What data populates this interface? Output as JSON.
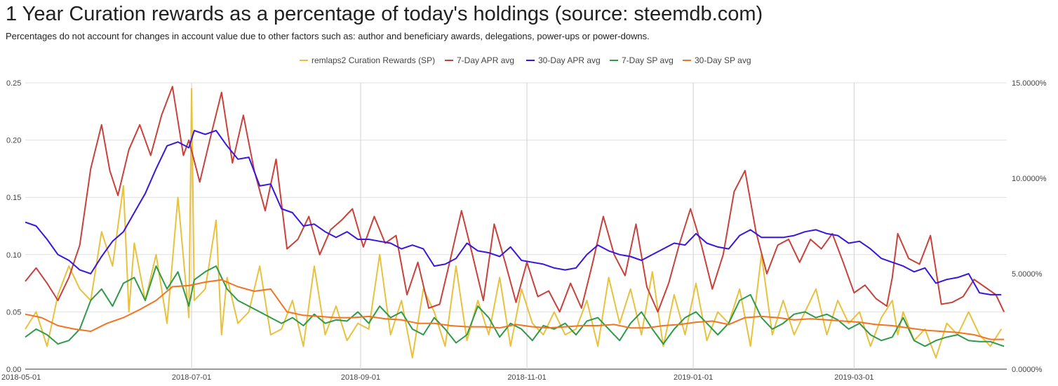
{
  "title": "1 Year Curation rewards as a percentage of today's holdings (source: steemdb.com)",
  "subtitle": "Percentages do not account for changes in account value due to other factors such as: author and beneficiary awards, delegations, power-ups or power-downs.",
  "chart_data": {
    "type": "line",
    "title": "1 Year Curation rewards as a percentage of today's holdings (source: steemdb.com)",
    "xlabel": "",
    "ylabel": "",
    "x_start": "2018-05-01",
    "x_end": "2019-04-26",
    "x_ticks": [
      "2018-05-01",
      "2018-07-01",
      "2018-09-01",
      "2018-11-01",
      "2019-01-01",
      "2019-03-01"
    ],
    "x_tick_days": [
      0,
      61,
      123,
      184,
      245,
      304
    ],
    "x_range_days": [
      0,
      360
    ],
    "ylim_left": [
      0,
      0.25
    ],
    "y_ticks_left": [
      "0.00",
      "0.05",
      "0.10",
      "0.15",
      "0.20",
      "0.25"
    ],
    "y_tick_values_left": [
      0,
      0.05,
      0.1,
      0.15,
      0.2,
      0.25
    ],
    "ylim_right": [
      0,
      15
    ],
    "y_ticks_right": [
      "0.0000%",
      "5.0000%",
      "10.0000%",
      "15.0000%"
    ],
    "y_tick_values_right": [
      0,
      5,
      10,
      15
    ],
    "grid": true,
    "legend_position": "top",
    "series": [
      {
        "name": "remlaps2 Curation Rewards (SP)",
        "axis": "left",
        "color": "#e8c13d",
        "days": [
          0,
          4,
          8,
          12,
          16,
          20,
          24,
          28,
          32,
          36,
          38,
          40,
          44,
          48,
          52,
          56,
          60,
          61,
          62,
          66,
          70,
          72,
          74,
          78,
          82,
          86,
          90,
          94,
          98,
          102,
          106,
          110,
          114,
          118,
          122,
          126,
          130,
          134,
          138,
          142,
          146,
          150,
          154,
          158,
          162,
          166,
          170,
          174,
          178,
          182,
          186,
          190,
          194,
          198,
          202,
          206,
          210,
          214,
          218,
          222,
          226,
          230,
          234,
          238,
          242,
          246,
          250,
          254,
          258,
          262,
          266,
          270,
          274,
          278,
          282,
          286,
          290,
          294,
          298,
          302,
          306,
          310,
          314,
          318,
          320,
          322,
          326,
          330,
          334,
          338,
          342,
          346,
          350,
          354,
          358
        ],
        "values": [
          0.035,
          0.05,
          0.02,
          0.065,
          0.09,
          0.07,
          0.06,
          0.12,
          0.09,
          0.16,
          0.05,
          0.11,
          0.06,
          0.1,
          0.04,
          0.15,
          0.045,
          0.245,
          0.06,
          0.07,
          0.13,
          0.03,
          0.08,
          0.04,
          0.05,
          0.09,
          0.03,
          0.035,
          0.06,
          0.02,
          0.09,
          0.03,
          0.055,
          0.025,
          0.04,
          0.035,
          0.1,
          0.03,
          0.06,
          0.01,
          0.07,
          0.05,
          0.02,
          0.09,
          0.025,
          0.06,
          0.03,
          0.08,
          0.02,
          0.07,
          0.04,
          0.03,
          0.05,
          0.03,
          0.035,
          0.06,
          0.02,
          0.08,
          0.04,
          0.07,
          0.03,
          0.085,
          0.02,
          0.065,
          0.03,
          0.075,
          0.025,
          0.05,
          0.04,
          0.07,
          0.02,
          0.1,
          0.03,
          0.06,
          0.03,
          0.05,
          0.07,
          0.03,
          0.06,
          0.04,
          0.05,
          0.02,
          0.045,
          0.06,
          0.03,
          0.05,
          0.025,
          0.035,
          0.01,
          0.04,
          0.03,
          0.05,
          0.03,
          0.02,
          0.035
        ]
      },
      {
        "name": "7-Day APR avg",
        "axis": "right",
        "color": "#c8413b",
        "days": [
          0,
          4,
          8,
          12,
          16,
          20,
          24,
          28,
          31,
          34,
          38,
          42,
          46,
          50,
          54,
          58,
          60,
          64,
          68,
          72,
          76,
          80,
          84,
          88,
          92,
          96,
          100,
          104,
          108,
          112,
          116,
          120,
          124,
          128,
          132,
          136,
          140,
          144,
          148,
          152,
          156,
          160,
          164,
          168,
          172,
          176,
          180,
          184,
          188,
          192,
          196,
          200,
          204,
          208,
          212,
          216,
          220,
          224,
          228,
          232,
          236,
          240,
          244,
          248,
          252,
          256,
          260,
          264,
          268,
          272,
          276,
          280,
          284,
          288,
          292,
          296,
          300,
          304,
          308,
          312,
          316,
          318,
          320,
          324,
          328,
          332,
          336,
          340,
          344,
          348,
          352,
          356,
          359
        ],
        "values": [
          4.6,
          5.3,
          4.5,
          3.6,
          4.8,
          6.5,
          10.5,
          12.8,
          10.4,
          9.1,
          11.5,
          12.8,
          11.2,
          13.3,
          14.8,
          11.2,
          12.0,
          9.8,
          12.2,
          14.5,
          10.8,
          13.3,
          10.4,
          8.3,
          11.0,
          6.3,
          6.8,
          8.0,
          6.0,
          7.3,
          7.8,
          8.4,
          6.4,
          8.0,
          6.6,
          7.0,
          3.9,
          5.6,
          3.2,
          3.4,
          5.8,
          8.3,
          6.0,
          3.6,
          7.6,
          5.6,
          3.5,
          5.6,
          3.8,
          4.1,
          3.0,
          4.5,
          3.2,
          5.5,
          8.0,
          6.0,
          4.9,
          7.6,
          4.3,
          3.0,
          4.5,
          6.6,
          8.4,
          6.5,
          4.2,
          6.0,
          9.3,
          10.4,
          7.2,
          5.0,
          6.5,
          6.8,
          5.6,
          6.8,
          6.3,
          7.1,
          5.6,
          4.0,
          4.4,
          3.7,
          3.3,
          4.8,
          7.1,
          5.8,
          5.5,
          7.0,
          3.4,
          3.5,
          3.8,
          4.7,
          4.3,
          3.9,
          3.0
        ]
      },
      {
        "name": "30-Day APR avg",
        "axis": "right",
        "color": "#3a15e0",
        "days": [
          0,
          4,
          8,
          12,
          16,
          20,
          24,
          28,
          32,
          36,
          40,
          44,
          48,
          52,
          56,
          60,
          62,
          66,
          70,
          74,
          78,
          82,
          86,
          90,
          94,
          98,
          102,
          106,
          110,
          114,
          118,
          122,
          126,
          130,
          134,
          138,
          142,
          146,
          150,
          154,
          158,
          162,
          166,
          170,
          174,
          178,
          182,
          186,
          190,
          194,
          198,
          202,
          206,
          210,
          214,
          218,
          222,
          226,
          230,
          234,
          238,
          242,
          246,
          250,
          254,
          258,
          262,
          266,
          270,
          274,
          278,
          282,
          286,
          290,
          294,
          298,
          302,
          306,
          310,
          314,
          318,
          322,
          326,
          330,
          334,
          338,
          342,
          346,
          350,
          354,
          358
        ],
        "values": [
          7.7,
          7.5,
          6.8,
          6.0,
          5.7,
          5.2,
          5.0,
          5.9,
          6.7,
          7.2,
          8.2,
          9.2,
          10.5,
          11.7,
          11.9,
          11.6,
          12.5,
          12.3,
          12.5,
          11.7,
          11.0,
          11.1,
          9.6,
          9.7,
          8.4,
          8.2,
          7.5,
          7.6,
          7.2,
          6.9,
          7.2,
          6.8,
          6.8,
          6.7,
          6.6,
          6.3,
          6.5,
          6.3,
          5.4,
          5.5,
          5.8,
          6.6,
          6.2,
          6.1,
          5.9,
          6.4,
          5.7,
          5.6,
          5.5,
          5.3,
          5.2,
          5.3,
          6.0,
          6.5,
          6.2,
          6.0,
          5.9,
          5.7,
          6.0,
          6.3,
          6.6,
          6.5,
          7.1,
          6.6,
          6.4,
          6.3,
          7.0,
          7.3,
          6.9,
          6.9,
          6.9,
          7.0,
          7.2,
          7.3,
          7.1,
          7.0,
          6.6,
          6.7,
          6.3,
          5.8,
          5.6,
          5.4,
          5.1,
          5.3,
          4.5,
          4.7,
          4.8,
          5.0,
          4.0,
          3.9,
          3.9
        ]
      },
      {
        "name": "7-Day SP avg",
        "axis": "left",
        "color": "#2e9b48",
        "days": [
          0,
          4,
          8,
          12,
          16,
          20,
          24,
          28,
          32,
          36,
          40,
          44,
          48,
          52,
          56,
          60,
          62,
          66,
          70,
          74,
          78,
          82,
          86,
          90,
          94,
          98,
          102,
          106,
          110,
          114,
          118,
          122,
          126,
          130,
          134,
          138,
          142,
          146,
          150,
          154,
          158,
          162,
          166,
          170,
          174,
          178,
          182,
          186,
          190,
          194,
          198,
          202,
          206,
          210,
          214,
          218,
          222,
          226,
          230,
          234,
          238,
          242,
          246,
          250,
          254,
          258,
          262,
          266,
          270,
          274,
          278,
          282,
          286,
          290,
          294,
          298,
          302,
          306,
          310,
          314,
          318,
          322,
          326,
          330,
          334,
          338,
          342,
          346,
          350,
          354,
          359
        ],
        "values": [
          0.028,
          0.035,
          0.03,
          0.022,
          0.025,
          0.035,
          0.06,
          0.07,
          0.055,
          0.075,
          0.08,
          0.06,
          0.09,
          0.07,
          0.085,
          0.055,
          0.078,
          0.085,
          0.09,
          0.07,
          0.06,
          0.055,
          0.05,
          0.045,
          0.04,
          0.045,
          0.038,
          0.048,
          0.04,
          0.043,
          0.042,
          0.05,
          0.04,
          0.055,
          0.045,
          0.05,
          0.035,
          0.03,
          0.045,
          0.035,
          0.023,
          0.03,
          0.055,
          0.045,
          0.028,
          0.04,
          0.035,
          0.025,
          0.038,
          0.035,
          0.04,
          0.03,
          0.042,
          0.045,
          0.035,
          0.025,
          0.04,
          0.05,
          0.035,
          0.022,
          0.035,
          0.045,
          0.05,
          0.04,
          0.03,
          0.04,
          0.06,
          0.065,
          0.045,
          0.035,
          0.04,
          0.048,
          0.05,
          0.045,
          0.048,
          0.043,
          0.035,
          0.04,
          0.03,
          0.025,
          0.028,
          0.045,
          0.025,
          0.02,
          0.025,
          0.028,
          0.03,
          0.025,
          0.024,
          0.024,
          0.02
        ]
      },
      {
        "name": "30-Day SP avg",
        "axis": "left",
        "color": "#f07422",
        "days": [
          0,
          6,
          12,
          18,
          24,
          30,
          36,
          42,
          48,
          54,
          60,
          66,
          72,
          78,
          84,
          90,
          96,
          102,
          108,
          114,
          120,
          126,
          132,
          138,
          144,
          150,
          156,
          162,
          168,
          174,
          180,
          186,
          192,
          198,
          204,
          210,
          216,
          222,
          228,
          234,
          240,
          246,
          252,
          258,
          264,
          270,
          276,
          282,
          288,
          294,
          300,
          306,
          312,
          318,
          324,
          330,
          336,
          342,
          348,
          354,
          359
        ],
        "values": [
          0.048,
          0.045,
          0.038,
          0.035,
          0.033,
          0.04,
          0.045,
          0.052,
          0.06,
          0.072,
          0.073,
          0.076,
          0.078,
          0.072,
          0.068,
          0.07,
          0.05,
          0.047,
          0.046,
          0.045,
          0.045,
          0.046,
          0.044,
          0.043,
          0.04,
          0.04,
          0.038,
          0.037,
          0.037,
          0.036,
          0.039,
          0.037,
          0.036,
          0.037,
          0.038,
          0.038,
          0.039,
          0.036,
          0.036,
          0.038,
          0.039,
          0.041,
          0.042,
          0.039,
          0.045,
          0.046,
          0.045,
          0.043,
          0.044,
          0.043,
          0.042,
          0.041,
          0.039,
          0.038,
          0.036,
          0.034,
          0.033,
          0.032,
          0.03,
          0.026,
          0.026
        ]
      }
    ]
  }
}
